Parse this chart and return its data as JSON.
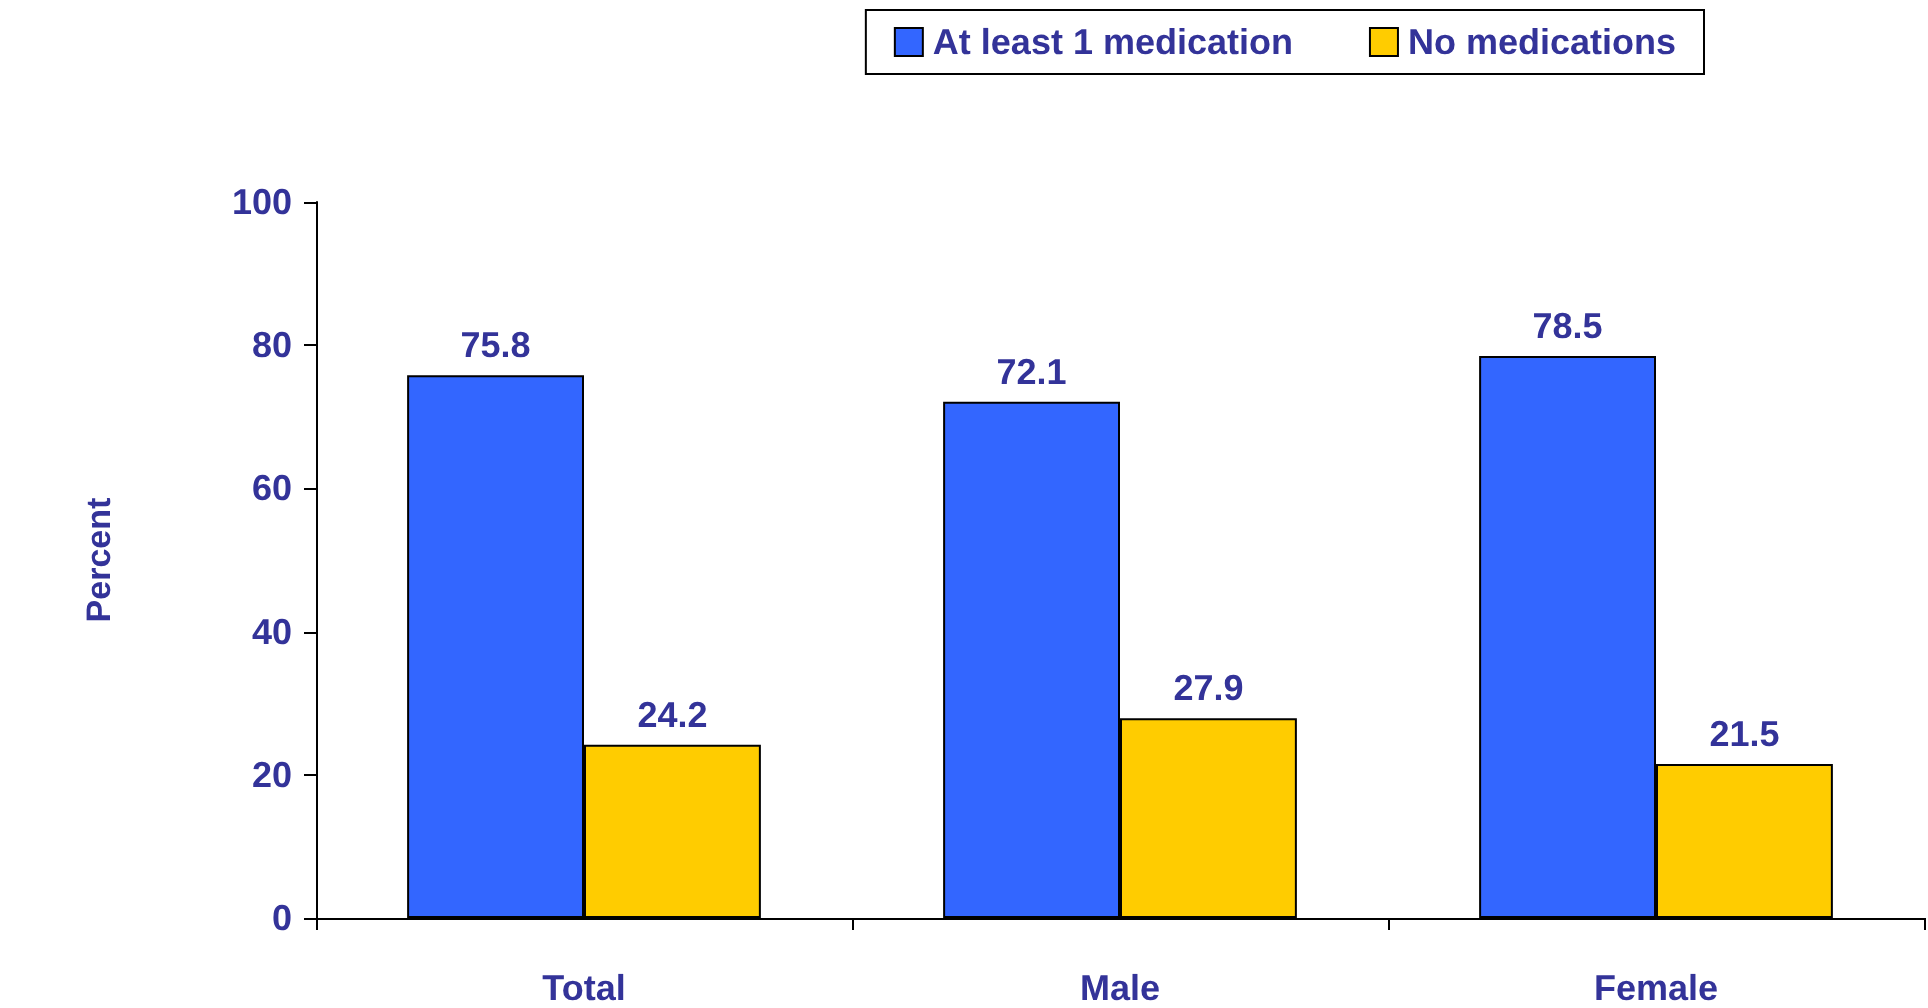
{
  "chart_data": {
    "type": "bar",
    "ylabel": "Percent",
    "categories": [
      "Total",
      "Male",
      "Female"
    ],
    "series": [
      {
        "name": "At least 1 medication",
        "color": "#3366ff",
        "values": [
          75.8,
          72.1,
          78.5
        ]
      },
      {
        "name": "No medications",
        "color": "#ffcc00",
        "values": [
          24.2,
          27.9,
          21.5
        ]
      }
    ],
    "ylim": [
      0,
      100
    ],
    "yticks": [
      0,
      20,
      40,
      60,
      80,
      100
    ],
    "grid": false,
    "legend": "top right",
    "data_labels": true
  }
}
